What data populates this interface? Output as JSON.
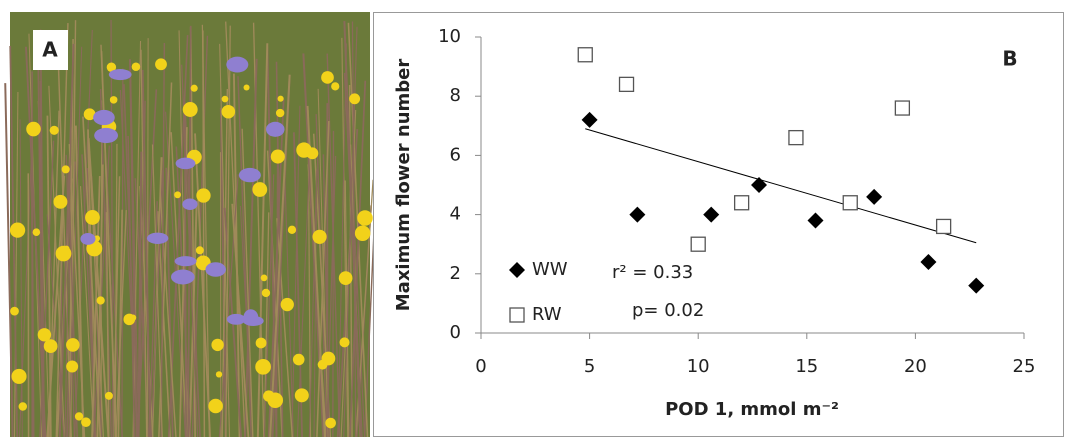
{
  "panel_a": {
    "label": "A"
  },
  "chart_data": {
    "type": "scatter",
    "panel_label": "B",
    "xlabel": "POD 1, mmol m⁻²",
    "ylabel": "Maximum flower number",
    "xlim": [
      0,
      25
    ],
    "xticks": [
      0,
      5,
      10,
      15,
      20,
      25
    ],
    "ylim": [
      0,
      10
    ],
    "yticks": [
      0,
      2,
      4,
      6,
      8,
      10
    ],
    "legend": "lower left",
    "series": [
      {
        "name": "WW",
        "marker": "diamond",
        "color": "#000000",
        "x": [
          5.0,
          7.2,
          10.6,
          12.8,
          15.4,
          18.1,
          20.6,
          22.8
        ],
        "values": [
          7.2,
          4.0,
          4.0,
          5.0,
          3.8,
          4.6,
          2.4,
          1.6
        ]
      },
      {
        "name": "RW",
        "marker": "square",
        "color": "#555555",
        "x": [
          4.8,
          6.7,
          10.0,
          12.0,
          14.5,
          17.0,
          19.4,
          21.3
        ],
        "values": [
          9.4,
          8.4,
          3.0,
          4.4,
          6.6,
          4.4,
          7.6,
          3.6
        ]
      }
    ],
    "trendline": {
      "x": [
        4.8,
        22.8
      ],
      "values": [
        6.9,
        3.05
      ]
    },
    "annotations": [
      "r² = 0.33",
      "p= 0.02"
    ]
  }
}
